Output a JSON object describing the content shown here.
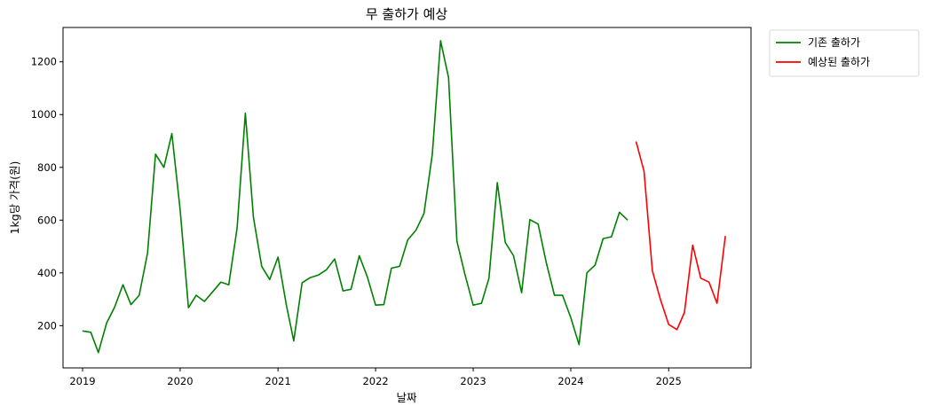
{
  "chart_data": {
    "type": "line",
    "title": "무 출하가 예상",
    "xlabel": "날짜",
    "ylabel": "1kg당 가격(원)",
    "x_ticks": [
      "2019",
      "2020",
      "2021",
      "2022",
      "2023",
      "2024",
      "2025"
    ],
    "y_ticks": [
      200,
      400,
      600,
      800,
      1000,
      1200
    ],
    "xlim": [
      "2018-10-20",
      "2025-11-05"
    ],
    "ylim": [
      40,
      1330
    ],
    "grid": false,
    "legend": "outside-top-right",
    "series": [
      {
        "name": "기존 출하가",
        "color": "#008000",
        "x": [
          "2019-01",
          "2019-02",
          "2019-03",
          "2019-04",
          "2019-05",
          "2019-06",
          "2019-07",
          "2019-08",
          "2019-09",
          "2019-10",
          "2019-11",
          "2019-12",
          "2020-01",
          "2020-02",
          "2020-03",
          "2020-04",
          "2020-05",
          "2020-06",
          "2020-07",
          "2020-08",
          "2020-09",
          "2020-10",
          "2020-11",
          "2020-12",
          "2021-01",
          "2021-02",
          "2021-03",
          "2021-04",
          "2021-05",
          "2021-06",
          "2021-07",
          "2021-08",
          "2021-09",
          "2021-10",
          "2021-11",
          "2021-12",
          "2022-01",
          "2022-02",
          "2022-03",
          "2022-04",
          "2022-05",
          "2022-06",
          "2022-07",
          "2022-08",
          "2022-09",
          "2022-10",
          "2022-11",
          "2022-12",
          "2023-01",
          "2023-02",
          "2023-03",
          "2023-04",
          "2023-05",
          "2023-06",
          "2023-07",
          "2023-08",
          "2023-09",
          "2023-10",
          "2023-11",
          "2023-12",
          "2024-01",
          "2024-02",
          "2024-03",
          "2024-04",
          "2024-05",
          "2024-06",
          "2024-07",
          "2024-08"
        ],
        "values": [
          180,
          175,
          98,
          210,
          270,
          355,
          280,
          315,
          475,
          850,
          800,
          928,
          640,
          268,
          315,
          292,
          328,
          365,
          355,
          570,
          1005,
          610,
          425,
          375,
          460,
          280,
          142,
          362,
          382,
          392,
          412,
          453,
          332,
          338,
          465,
          385,
          278,
          280,
          418,
          425,
          525,
          562,
          625,
          850,
          1280,
          1140,
          520,
          395,
          278,
          285,
          380,
          742,
          515,
          465,
          325,
          602,
          585,
          440,
          315,
          315,
          230,
          128,
          400,
          430,
          530,
          537,
          630,
          600
        ]
      },
      {
        "name": "예상된 출하가",
        "color": "#ff0000",
        "x": [
          "2024-09",
          "2024-10",
          "2024-11",
          "2024-12",
          "2025-01",
          "2025-02",
          "2025-03",
          "2025-04",
          "2025-05",
          "2025-06",
          "2025-07",
          "2025-08"
        ],
        "values": [
          898,
          785,
          408,
          300,
          205,
          185,
          250,
          505,
          380,
          365,
          285,
          540
        ]
      }
    ]
  }
}
